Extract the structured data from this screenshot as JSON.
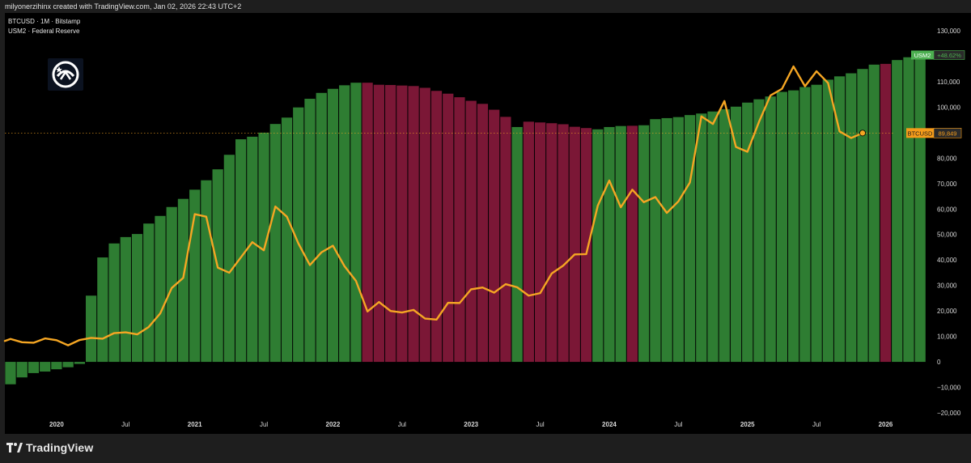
{
  "header": {
    "attribution": "milyonerzihinx created with TradingView.com, Jan 02, 2026 22:43 UTC+2"
  },
  "legend": {
    "line1": "BTCUSD · 1M · Bitstamp",
    "line2": "USM2 · Federal Reserve"
  },
  "footer": {
    "brand": "TradingView",
    "logo_icon": "tradingview-logo-icon"
  },
  "colors": {
    "background": "#000000",
    "bar_growth": "#2e7d32",
    "bar_decline": "#7b1736",
    "btc_line": "#f5a623",
    "usm2_badge": "#4caf50",
    "btc_badge": "#f59c1a"
  },
  "chart_data": {
    "type": "bar",
    "series": [
      {
        "name": "USM2",
        "type": "bar",
        "start_month": "2019-09",
        "values": [
          -8800,
          -6100,
          -4400,
          -3800,
          -2900,
          -2100,
          -800,
          26000,
          41000,
          46500,
          49000,
          50200,
          54300,
          57300,
          60800,
          64000,
          67600,
          71300,
          75600,
          81300,
          87400,
          88400,
          90000,
          93400,
          95900,
          99900,
          103300,
          105600,
          107200,
          108600,
          109600,
          109600,
          108800,
          108700,
          108500,
          108300,
          107600,
          106400,
          105300,
          103900,
          102500,
          101300,
          99000,
          96200,
          92200,
          94300,
          94000,
          93700,
          93300,
          92300,
          91800,
          91300,
          92200,
          92600,
          92700,
          92900,
          95300,
          95700,
          96100,
          96900,
          97500,
          98300,
          99200,
          100200,
          101800,
          103100,
          104200,
          106000,
          106600,
          107900,
          108800,
          110800,
          112100,
          113300,
          115000,
          116700,
          117000,
          118500,
          119600,
          120000
        ],
        "bar_color_by_month": [
          "g",
          "g",
          "g",
          "g",
          "g",
          "g",
          "g",
          "g",
          "g",
          "g",
          "g",
          "g",
          "g",
          "g",
          "g",
          "g",
          "g",
          "g",
          "g",
          "g",
          "g",
          "g",
          "g",
          "g",
          "g",
          "g",
          "g",
          "g",
          "g",
          "g",
          "g",
          "r",
          "r",
          "r",
          "r",
          "r",
          "r",
          "r",
          "r",
          "r",
          "r",
          "r",
          "r",
          "r",
          "g",
          "r",
          "r",
          "r",
          "r",
          "r",
          "r",
          "g",
          "g",
          "g",
          "r",
          "g",
          "g",
          "g",
          "g",
          "g",
          "g",
          "g",
          "g",
          "g",
          "g",
          "g",
          "g",
          "g",
          "g",
          "g",
          "g",
          "g",
          "g",
          "g",
          "g",
          "g",
          "r",
          "g",
          "g",
          "g"
        ],
        "last_change": "+48.62%"
      },
      {
        "name": "BTCUSD",
        "type": "line",
        "start_month": "2019-08",
        "values": [
          8200,
          9000,
          7700,
          7500,
          9200,
          8500,
          6500,
          8600,
          9400,
          9100,
          11300,
          11600,
          10800,
          13700,
          19000,
          29000,
          33000,
          58000,
          57000,
          37000,
          35000,
          41000,
          47000,
          43800,
          61000,
          57000,
          46500,
          38000,
          43000,
          45600,
          37600,
          31800,
          19800,
          23500,
          20000,
          19400,
          20400,
          17000,
          16600,
          23200,
          23100,
          28500,
          29200,
          27200,
          30500,
          29300,
          26000,
          27000,
          34700,
          37800,
          42200,
          42300,
          61300,
          71200,
          60700,
          67600,
          62700,
          64700,
          58500,
          63000,
          70400,
          96400,
          93400,
          102400,
          84400,
          82500,
          94200,
          104600,
          107200,
          116000,
          108200,
          114100,
          109500,
          90500,
          87900,
          89849
        ],
        "last_value_label": "89,849"
      }
    ],
    "y_ticks": [
      "130,000",
      "120,000",
      "110,000",
      "100,000",
      "90,000",
      "80,000",
      "70,000",
      "60,000",
      "50,000",
      "40,000",
      "30,000",
      "20,000",
      "10,000",
      "0",
      "−10,000",
      "−20,000"
    ],
    "y_tick_values": [
      130000,
      120000,
      110000,
      100000,
      90000,
      80000,
      70000,
      60000,
      50000,
      40000,
      30000,
      20000,
      10000,
      0,
      -10000,
      -20000
    ],
    "ylim": [
      -20000,
      130000
    ],
    "x_ticks": [
      {
        "label": "2020",
        "month": "2020-01"
      },
      {
        "label": "Jul",
        "month": "2020-07"
      },
      {
        "label": "2021",
        "month": "2021-01"
      },
      {
        "label": "Jul",
        "month": "2021-07"
      },
      {
        "label": "2022",
        "month": "2022-01"
      },
      {
        "label": "Jul",
        "month": "2022-07"
      },
      {
        "label": "2023",
        "month": "2023-01"
      },
      {
        "label": "Jul",
        "month": "2023-07"
      },
      {
        "label": "2024",
        "month": "2024-01"
      },
      {
        "label": "Jul",
        "month": "2024-07"
      },
      {
        "label": "2025",
        "month": "2025-01"
      },
      {
        "label": "Jul",
        "month": "2025-07"
      },
      {
        "label": "2026",
        "month": "2026-01"
      }
    ],
    "grid": false
  }
}
